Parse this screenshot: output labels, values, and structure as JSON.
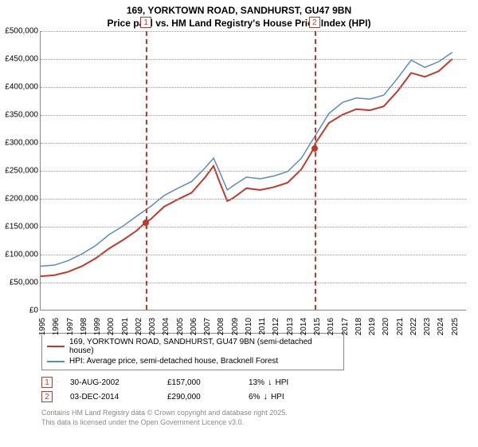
{
  "chart": {
    "type": "line",
    "title_line1": "169, YORKTOWN ROAD, SANDHURST, GU47 9BN",
    "title_line2": "Price paid vs. HM Land Registry's House Price Index (HPI)",
    "title_fontsize": 12,
    "background_color": "#ffffff",
    "grid_color": "#999999",
    "axis_color": "#888888",
    "x": {
      "min": 1995,
      "max": 2026,
      "ticks": [
        1995,
        1996,
        1997,
        1998,
        1999,
        2000,
        2001,
        2002,
        2003,
        2004,
        2005,
        2006,
        2007,
        2008,
        2009,
        2010,
        2011,
        2012,
        2013,
        2014,
        2015,
        2016,
        2017,
        2018,
        2019,
        2020,
        2021,
        2022,
        2023,
        2024,
        2025
      ],
      "label_fontsize": 10,
      "label_rotation": -90
    },
    "y": {
      "min": 0,
      "max": 500000,
      "ticks": [
        0,
        50000,
        100000,
        150000,
        200000,
        250000,
        300000,
        350000,
        400000,
        450000,
        500000
      ],
      "tick_labels": [
        "£0",
        "£50,000",
        "£100,000",
        "£150,000",
        "£200,000",
        "£250,000",
        "£300,000",
        "£350,000",
        "£400,000",
        "£450,000",
        "£500,000"
      ],
      "label_fontsize": 10
    },
    "series": [
      {
        "name": "price_paid",
        "label": "169, YORKTOWN ROAD, SANDHURST, GU47 9BN (semi-detached house)",
        "color": "#c0392b",
        "width": 2,
        "points": [
          [
            1995,
            60000
          ],
          [
            1996,
            62000
          ],
          [
            1997,
            68000
          ],
          [
            1998,
            78000
          ],
          [
            1999,
            92000
          ],
          [
            2000,
            110000
          ],
          [
            2001,
            125000
          ],
          [
            2002,
            142000
          ],
          [
            2002.66,
            157000
          ],
          [
            2003,
            162000
          ],
          [
            2004,
            185000
          ],
          [
            2005,
            198000
          ],
          [
            2006,
            210000
          ],
          [
            2007,
            238000
          ],
          [
            2007.6,
            258000
          ],
          [
            2008,
            232000
          ],
          [
            2008.6,
            195000
          ],
          [
            2009,
            200000
          ],
          [
            2010,
            218000
          ],
          [
            2011,
            215000
          ],
          [
            2012,
            220000
          ],
          [
            2013,
            228000
          ],
          [
            2014,
            252000
          ],
          [
            2014.92,
            290000
          ],
          [
            2015,
            298000
          ],
          [
            2016,
            335000
          ],
          [
            2017,
            350000
          ],
          [
            2018,
            360000
          ],
          [
            2019,
            358000
          ],
          [
            2020,
            365000
          ],
          [
            2021,
            392000
          ],
          [
            2022,
            425000
          ],
          [
            2023,
            418000
          ],
          [
            2024,
            428000
          ],
          [
            2025,
            450000
          ]
        ]
      },
      {
        "name": "hpi",
        "label": "HPI: Average price, semi-detached house, Bracknell Forest",
        "color": "#5b8db8",
        "width": 1.5,
        "points": [
          [
            1995,
            78000
          ],
          [
            1996,
            80000
          ],
          [
            1997,
            88000
          ],
          [
            1998,
            100000
          ],
          [
            1999,
            115000
          ],
          [
            2000,
            135000
          ],
          [
            2001,
            150000
          ],
          [
            2002,
            168000
          ],
          [
            2003,
            185000
          ],
          [
            2004,
            205000
          ],
          [
            2005,
            218000
          ],
          [
            2006,
            230000
          ],
          [
            2007,
            255000
          ],
          [
            2007.6,
            272000
          ],
          [
            2008,
            250000
          ],
          [
            2008.6,
            215000
          ],
          [
            2009,
            222000
          ],
          [
            2010,
            238000
          ],
          [
            2011,
            235000
          ],
          [
            2012,
            240000
          ],
          [
            2013,
            248000
          ],
          [
            2014,
            272000
          ],
          [
            2015,
            312000
          ],
          [
            2016,
            352000
          ],
          [
            2017,
            372000
          ],
          [
            2018,
            380000
          ],
          [
            2019,
            378000
          ],
          [
            2020,
            385000
          ],
          [
            2021,
            415000
          ],
          [
            2022,
            448000
          ],
          [
            2023,
            435000
          ],
          [
            2024,
            445000
          ],
          [
            2025,
            462000
          ]
        ]
      }
    ],
    "markers": [
      {
        "num": "1",
        "year": 2002.66,
        "value": 157000,
        "color": "#c0392b"
      },
      {
        "num": "2",
        "year": 2014.92,
        "value": 290000,
        "color": "#c0392b"
      }
    ],
    "legend": {
      "border_color": "#888888",
      "fontsize": 10
    }
  },
  "events": [
    {
      "num": "1",
      "date": "30-AUG-2002",
      "price": "£157,000",
      "diff_pct": "13%",
      "diff_dir": "↓",
      "diff_label": "HPI"
    },
    {
      "num": "2",
      "date": "03-DEC-2014",
      "price": "£290,000",
      "diff_pct": "6%",
      "diff_dir": "↓",
      "diff_label": "HPI"
    }
  ],
  "footer": {
    "line1": "Contains HM Land Registry data © Crown copyright and database right 2025.",
    "line2": "This data is licensed under the Open Government Licence v3.0.",
    "color": "#888888",
    "fontsize": 9
  }
}
